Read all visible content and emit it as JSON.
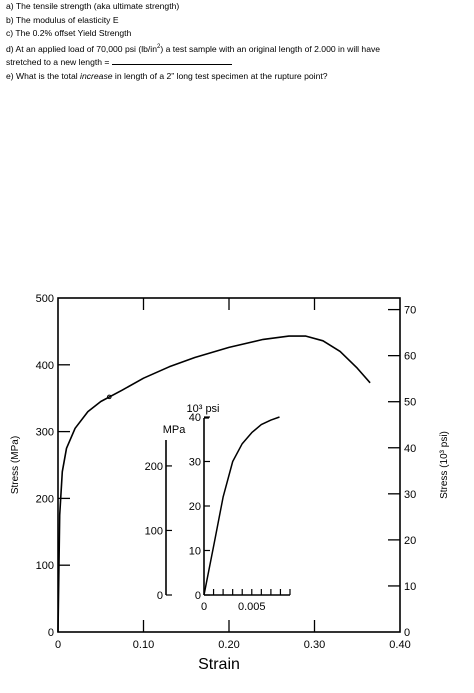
{
  "questions": {
    "a": "a) The tensile strength (aka ultimate strength)",
    "b": "b) The modulus of elasticity E",
    "c": "c) The 0.2% offset Yield Strength",
    "d_pre": "d) At an applied load of 70,000 psi (lb/in",
    "d_sup": "2",
    "d_post": ") a test sample with an original length of 2.000 in will have",
    "d_line2": "stretched to a new length = ",
    "e_pre": "e) What is the total ",
    "e_em": "increase",
    "e_post": " in length of a 2” long test specimen at the rupture point?"
  },
  "chart_data": [
    {
      "type": "line",
      "title": "",
      "xlabel": "Strain",
      "ylabel_left": "Stress (MPa)",
      "ylabel_right": "Stress (10³ psi)",
      "xlim": [
        0,
        0.4
      ],
      "ylim_mpa": [
        0,
        500
      ],
      "x_ticks": [
        "0",
        "0.10",
        "0.20",
        "0.30",
        "0.40"
      ],
      "y_ticks_left": [
        "0",
        "100",
        "200",
        "300",
        "400",
        "500"
      ],
      "y_ticks_right": [
        "0",
        "10",
        "20",
        "30",
        "40",
        "50",
        "60",
        "70"
      ],
      "grid": false,
      "series": [
        {
          "x": [
            0,
            0.002,
            0.005,
            0.01,
            0.02,
            0.035,
            0.05,
            0.075,
            0.1,
            0.13,
            0.16,
            0.2,
            0.24,
            0.27,
            0.29,
            0.31,
            0.33,
            0.35,
            0.365
          ],
          "y": [
            0,
            175,
            240,
            275,
            305,
            330,
            345,
            362,
            380,
            397,
            411,
            426,
            438,
            443,
            443,
            436,
            420,
            395,
            373
          ]
        }
      ]
    },
    {
      "type": "line",
      "title": "",
      "xlabel": "",
      "ylabel_left": "MPa",
      "ylabel_right": "10³ psi",
      "xlim": [
        0,
        0.009
      ],
      "x_ticks": [
        "0",
        "0.005"
      ],
      "y_ticks_mpa": [
        "0",
        "100",
        "200"
      ],
      "y_ticks_psi": [
        "0",
        "10",
        "20",
        "30",
        "40"
      ],
      "series": [
        {
          "x": [
            0,
            0.0011,
            0.002,
            0.003,
            0.004,
            0.005,
            0.006,
            0.007,
            0.0079
          ],
          "y_ksi": [
            0,
            12,
            22,
            30,
            34,
            36.5,
            38.3,
            39.3,
            40
          ]
        }
      ]
    }
  ]
}
